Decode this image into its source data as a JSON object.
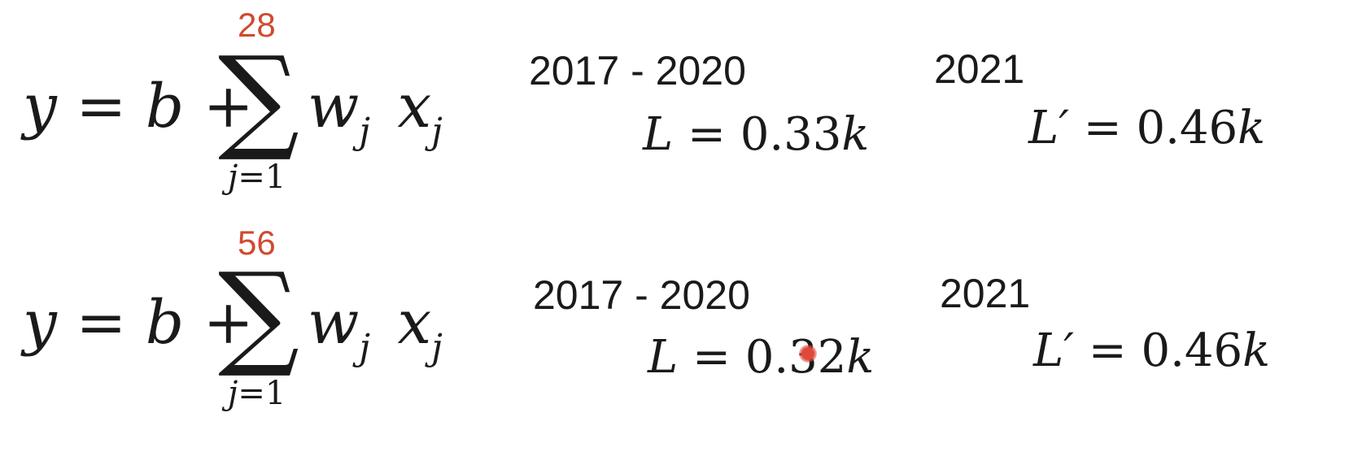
{
  "rows": [
    {
      "equation": {
        "lhs": "y",
        "equals": "=",
        "b": "b",
        "plus": "+",
        "sum_upper": "28",
        "sum_lower_j": "j",
        "sum_lower_rest": "=1",
        "w": "w",
        "w_sub": "j",
        "x": "x",
        "x_sub": "j"
      },
      "train_years": "2017 - 2020",
      "train_loss": {
        "symbol": "L",
        "equals": "=",
        "value": "0.33",
        "unit": "k"
      },
      "test_year": "2021",
      "test_loss": {
        "symbol": "L′",
        "equals": "=",
        "value": "0.46",
        "unit": "k"
      }
    },
    {
      "equation": {
        "lhs": "y",
        "equals": "=",
        "b": "b",
        "plus": "+",
        "sum_upper": "56",
        "sum_lower_j": "j",
        "sum_lower_rest": "=1",
        "w": "w",
        "w_sub": "j",
        "x": "x",
        "x_sub": "j"
      },
      "train_years": "2017 - 2020",
      "train_loss": {
        "symbol": "L",
        "equals": "=",
        "value": "0.32",
        "unit": "k"
      },
      "test_year": "2021",
      "test_loss": {
        "symbol": "L′",
        "equals": "=",
        "value": "0.46",
        "unit": "k"
      }
    }
  ],
  "colors": {
    "text": "#1a1a1a",
    "sum_limit": "#d04a2f",
    "cursor": "#e0493a"
  },
  "icons": [
    "cursor-pointer-icon"
  ]
}
